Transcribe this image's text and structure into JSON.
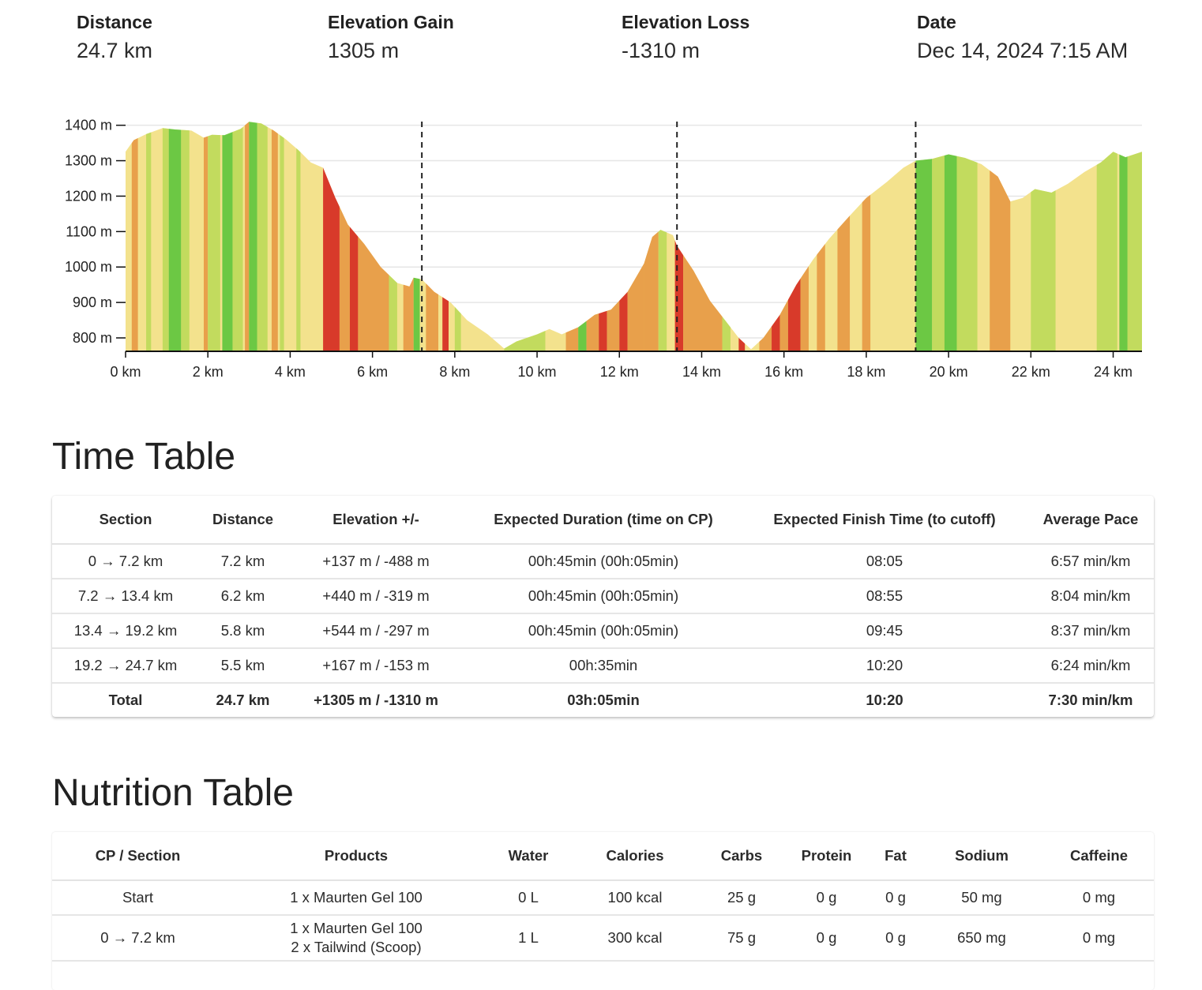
{
  "stats": [
    {
      "label": "Distance",
      "value": "24.7 km"
    },
    {
      "label": "Elevation Gain",
      "value": "1305 m"
    },
    {
      "label": "Elevation Loss",
      "value": "-1310 m"
    },
    {
      "label": "Date",
      "value": "Dec 14, 2024 7:15 AM"
    }
  ],
  "chart_data": {
    "type": "area",
    "xlabel": "",
    "ylabel": "",
    "xlim": [
      0,
      24.7
    ],
    "ylim": [
      760,
      1400
    ],
    "x_tick_labels": [
      "0 km",
      "2 km",
      "4 km",
      "6 km",
      "8 km",
      "10 km",
      "12 km",
      "14 km",
      "16 km",
      "18 km",
      "20 km",
      "22 km",
      "24 km"
    ],
    "y_tick_labels": [
      "1400 m",
      "1300 m",
      "1200 m",
      "1100 m",
      "1000 m",
      "900 m",
      "800 m"
    ],
    "grid": true,
    "checkpoints_km": [
      7.2,
      13.4,
      19.2
    ],
    "profile": [
      [
        0,
        1325
      ],
      [
        0.2,
        1358
      ],
      [
        0.5,
        1375
      ],
      [
        0.9,
        1392
      ],
      [
        1.2,
        1388
      ],
      [
        1.6,
        1385
      ],
      [
        1.9,
        1365
      ],
      [
        2.1,
        1373
      ],
      [
        2.4,
        1372
      ],
      [
        2.8,
        1390
      ],
      [
        3.0,
        1410
      ],
      [
        3.3,
        1405
      ],
      [
        3.6,
        1385
      ],
      [
        3.9,
        1360
      ],
      [
        4.2,
        1330
      ],
      [
        4.5,
        1295
      ],
      [
        4.8,
        1280
      ],
      [
        5.1,
        1195
      ],
      [
        5.4,
        1120
      ],
      [
        5.8,
        1065
      ],
      [
        6.2,
        1000
      ],
      [
        6.6,
        955
      ],
      [
        6.9,
        945
      ],
      [
        7.0,
        970
      ],
      [
        7.2,
        965
      ],
      [
        7.5,
        930
      ],
      [
        7.9,
        900
      ],
      [
        8.3,
        850
      ],
      [
        8.8,
        810
      ],
      [
        9.2,
        770
      ],
      [
        9.5,
        790
      ],
      [
        10.0,
        810
      ],
      [
        10.3,
        825
      ],
      [
        10.6,
        810
      ],
      [
        11.0,
        830
      ],
      [
        11.4,
        865
      ],
      [
        11.8,
        880
      ],
      [
        12.2,
        930
      ],
      [
        12.6,
        1010
      ],
      [
        12.8,
        1085
      ],
      [
        13.0,
        1105
      ],
      [
        13.3,
        1090
      ],
      [
        13.4,
        1060
      ],
      [
        13.8,
        990
      ],
      [
        14.2,
        905
      ],
      [
        14.6,
        845
      ],
      [
        14.9,
        800
      ],
      [
        15.2,
        768
      ],
      [
        15.5,
        800
      ],
      [
        15.9,
        865
      ],
      [
        16.3,
        950
      ],
      [
        16.7,
        1020
      ],
      [
        17.1,
        1080
      ],
      [
        17.6,
        1145
      ],
      [
        18.0,
        1195
      ],
      [
        18.5,
        1240
      ],
      [
        18.9,
        1280
      ],
      [
        19.2,
        1300
      ],
      [
        19.6,
        1305
      ],
      [
        20.0,
        1318
      ],
      [
        20.4,
        1308
      ],
      [
        20.8,
        1290
      ],
      [
        21.2,
        1255
      ],
      [
        21.5,
        1185
      ],
      [
        21.8,
        1195
      ],
      [
        22.1,
        1220
      ],
      [
        22.5,
        1210
      ],
      [
        22.9,
        1235
      ],
      [
        23.3,
        1268
      ],
      [
        23.7,
        1295
      ],
      [
        24.0,
        1325
      ],
      [
        24.3,
        1310
      ],
      [
        24.7,
        1325
      ]
    ],
    "gradient_colors": {
      "steep_down": "#d83a2a",
      "down": "#e8a04b",
      "flat": "#f3e28d",
      "mild_up": "#c2db5e",
      "up": "#6cc844"
    },
    "stripes": [
      [
        0,
        0.15,
        "#f3e28d"
      ],
      [
        0.15,
        0.3,
        "#e8a04b"
      ],
      [
        0.5,
        0.62,
        "#c2db5e"
      ],
      [
        0.9,
        1.05,
        "#c2db5e"
      ],
      [
        1.05,
        1.35,
        "#6cc844"
      ],
      [
        1.35,
        1.55,
        "#c2db5e"
      ],
      [
        1.9,
        2.0,
        "#e8a04b"
      ],
      [
        2.0,
        2.3,
        "#c2db5e"
      ],
      [
        2.35,
        2.6,
        "#6cc844"
      ],
      [
        2.6,
        2.85,
        "#c2db5e"
      ],
      [
        2.9,
        3.0,
        "#e8a04b"
      ],
      [
        3.0,
        3.2,
        "#6cc844"
      ],
      [
        3.2,
        3.45,
        "#c2db5e"
      ],
      [
        3.55,
        3.7,
        "#e8a04b"
      ],
      [
        3.75,
        3.85,
        "#c2db5e"
      ],
      [
        4.15,
        4.25,
        "#c2db5e"
      ],
      [
        4.8,
        5.2,
        "#d83a2a"
      ],
      [
        5.2,
        5.45,
        "#e8a04b"
      ],
      [
        5.45,
        5.65,
        "#d83a2a"
      ],
      [
        5.65,
        6.4,
        "#e8a04b"
      ],
      [
        6.4,
        6.6,
        "#c2db5e"
      ],
      [
        6.75,
        7.0,
        "#e8a04b"
      ],
      [
        7.0,
        7.15,
        "#6cc844"
      ],
      [
        7.3,
        7.6,
        "#e8a04b"
      ],
      [
        7.7,
        7.85,
        "#d83a2a"
      ],
      [
        8.0,
        8.15,
        "#c2db5e"
      ],
      [
        9.2,
        10.2,
        "#c2db5e"
      ],
      [
        10.7,
        11.0,
        "#e8a04b"
      ],
      [
        11.0,
        11.2,
        "#6cc844"
      ],
      [
        11.2,
        11.5,
        "#e8a04b"
      ],
      [
        11.5,
        11.7,
        "#d83a2a"
      ],
      [
        11.7,
        12.0,
        "#e8a04b"
      ],
      [
        12.0,
        12.2,
        "#d83a2a"
      ],
      [
        12.2,
        12.6,
        "#e8a04b"
      ],
      [
        12.6,
        12.95,
        "#e8a04b"
      ],
      [
        12.95,
        13.15,
        "#c2db5e"
      ],
      [
        13.35,
        13.55,
        "#d83a2a"
      ],
      [
        13.55,
        14.5,
        "#e8a04b"
      ],
      [
        14.5,
        14.7,
        "#c2db5e"
      ],
      [
        14.9,
        15.05,
        "#d83a2a"
      ],
      [
        15.4,
        15.7,
        "#e8a04b"
      ],
      [
        15.7,
        15.9,
        "#d83a2a"
      ],
      [
        15.9,
        16.1,
        "#e8a04b"
      ],
      [
        16.1,
        16.4,
        "#d83a2a"
      ],
      [
        16.4,
        16.6,
        "#e8a04b"
      ],
      [
        16.8,
        17.0,
        "#e8a04b"
      ],
      [
        17.3,
        17.6,
        "#e8a04b"
      ],
      [
        17.9,
        18.1,
        "#e8a04b"
      ],
      [
        19.2,
        19.6,
        "#6cc844"
      ],
      [
        19.6,
        19.9,
        "#c2db5e"
      ],
      [
        19.9,
        20.2,
        "#6cc844"
      ],
      [
        20.2,
        20.7,
        "#c2db5e"
      ],
      [
        21.0,
        21.5,
        "#e8a04b"
      ],
      [
        22.0,
        22.6,
        "#c2db5e"
      ],
      [
        23.6,
        24.1,
        "#c2db5e"
      ],
      [
        24.15,
        24.35,
        "#6cc844"
      ],
      [
        24.35,
        24.7,
        "#c2db5e"
      ]
    ]
  },
  "time_table": {
    "title": "Time Table",
    "headers": [
      "Section",
      "Distance",
      "Elevation +/-",
      "Expected Duration (time on CP)",
      "Expected Finish Time (to cutoff)",
      "Average Pace"
    ],
    "rows": [
      [
        "0 → 7.2 km",
        "7.2 km",
        "+137 m / -488 m",
        "00h:45min (00h:05min)",
        "08:05",
        "6:57 min/km"
      ],
      [
        "7.2 → 13.4 km",
        "6.2 km",
        "+440 m / -319 m",
        "00h:45min (00h:05min)",
        "08:55",
        "8:04 min/km"
      ],
      [
        "13.4 → 19.2 km",
        "5.8 km",
        "+544 m / -297 m",
        "00h:45min (00h:05min)",
        "09:45",
        "8:37 min/km"
      ],
      [
        "19.2 → 24.7 km",
        "5.5 km",
        "+167 m / -153 m",
        "00h:35min",
        "10:20",
        "6:24 min/km"
      ]
    ],
    "total": [
      "Total",
      "24.7 km",
      "+1305 m / -1310 m",
      "03h:05min",
      "10:20",
      "7:30 min/km"
    ]
  },
  "nutrition_table": {
    "title": "Nutrition Table",
    "headers": [
      "CP / Section",
      "Products",
      "Water",
      "Calories",
      "Carbs",
      "Protein",
      "Fat",
      "Sodium",
      "Caffeine"
    ],
    "rows": [
      {
        "section": "Start",
        "products": [
          "1 x Maurten Gel 100"
        ],
        "water": "0 L",
        "calories": "100 kcal",
        "carbs": "25 g",
        "protein": "0 g",
        "fat": "0 g",
        "sodium": "50 mg",
        "caffeine": "0 mg"
      },
      {
        "section": "0 → 7.2 km",
        "products": [
          "1 x Maurten Gel 100",
          "2 x Tailwind (Scoop)"
        ],
        "water": "1 L",
        "calories": "300 kcal",
        "carbs": "75 g",
        "protein": "0 g",
        "fat": "0 g",
        "sodium": "650 mg",
        "caffeine": "0 mg"
      }
    ]
  }
}
